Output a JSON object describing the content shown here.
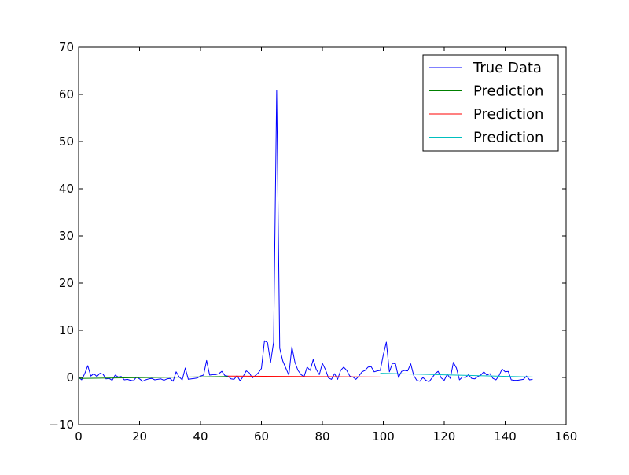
{
  "chart_data": {
    "type": "line",
    "title": "",
    "xlabel": "",
    "ylabel": "",
    "xlim": [
      0,
      160
    ],
    "ylim": [
      -10,
      70
    ],
    "xticks": [
      0,
      20,
      40,
      60,
      80,
      100,
      120,
      140,
      160
    ],
    "yticks": [
      -10,
      0,
      10,
      20,
      30,
      40,
      50,
      60,
      70
    ],
    "grid": false,
    "legend": {
      "placement": "top-right"
    },
    "series": [
      {
        "name": "True Data",
        "color": "#0000ff",
        "x": [
          0,
          1,
          2,
          3,
          4,
          5,
          6,
          7,
          8,
          9,
          10,
          11,
          12,
          13,
          14,
          15,
          16,
          17,
          18,
          19,
          20,
          21,
          22,
          23,
          24,
          25,
          26,
          27,
          28,
          29,
          30,
          31,
          32,
          33,
          34,
          35,
          36,
          37,
          38,
          39,
          40,
          41,
          42,
          43,
          44,
          45,
          46,
          47,
          48,
          49,
          50,
          51,
          52,
          53,
          54,
          55,
          56,
          57,
          58,
          59,
          60,
          61,
          62,
          63,
          64,
          65,
          66,
          67,
          68,
          69,
          70,
          71,
          72,
          73,
          74,
          75,
          76,
          77,
          78,
          79,
          80,
          81,
          82,
          83,
          84,
          85,
          86,
          87,
          88,
          89,
          90,
          91,
          92,
          93,
          94,
          95,
          96,
          97,
          98,
          99,
          100,
          101,
          102,
          103,
          104,
          105,
          106,
          107,
          108,
          109,
          110,
          111,
          112,
          113,
          114,
          115,
          116,
          117,
          118,
          119,
          120,
          121,
          122,
          123,
          124,
          125,
          126,
          127,
          128,
          129,
          130,
          131,
          132,
          133,
          134,
          135,
          136,
          137,
          138,
          139,
          140,
          141,
          142,
          143,
          144,
          145,
          146,
          147,
          148,
          149
        ],
        "y": [
          0,
          -0.5,
          0.8,
          2.5,
          0.3,
          0.8,
          0.2,
          0.9,
          0.7,
          -0.3,
          -0.2,
          -0.6,
          0.5,
          0.1,
          0.2,
          -0.5,
          -0.4,
          -0.6,
          -0.7,
          0.1,
          -0.3,
          -0.8,
          -0.5,
          -0.3,
          -0.2,
          -0.5,
          -0.4,
          -0.3,
          -0.6,
          -0.3,
          -0.2,
          -0.8,
          1.2,
          0.1,
          -0.5,
          2,
          -0.4,
          -0.3,
          -0.2,
          -0.1,
          0.3,
          0.5,
          3.6,
          0.5,
          0.6,
          0.6,
          0.8,
          1.3,
          0.4,
          0.3,
          -0.3,
          -0.4,
          0.4,
          -0.7,
          0.2,
          1.4,
          1,
          -0.1,
          0.4,
          1,
          1.9,
          7.8,
          7.4,
          3.2,
          7.5,
          60.8,
          6.2,
          3.5,
          2,
          0.5,
          6.5,
          3.2,
          1.5,
          0.6,
          0.2,
          2.2,
          1.5,
          3.8,
          1.7,
          0.6,
          3,
          1.7,
          -0.1,
          -0.4,
          0.8,
          -0.4,
          1.5,
          2.2,
          1.5,
          0.3,
          0.1,
          -0.4,
          0.3,
          1.2,
          1.5,
          2.2,
          2.3,
          1.2,
          1.4,
          1.5,
          4.8,
          7.5,
          1.2,
          3,
          2.9,
          0,
          1.3,
          1.5,
          1.4,
          2.9,
          0.4,
          -0.6,
          -0.8,
          0,
          -0.6,
          -0.9,
          -0.1,
          0.8,
          1.3,
          -0.1,
          -0.6,
          0.7,
          -0.2,
          3.2,
          2,
          -0.5,
          0.1,
          0,
          0.6,
          -0.2,
          -0.3,
          0.2,
          0.5,
          1.2,
          0.5,
          0.8,
          -0.2,
          -0.5,
          0.4,
          1.8,
          1.2,
          1.3,
          -0.5,
          -0.6,
          -0.6,
          -0.5,
          -0.4,
          0.3,
          -0.5,
          -0.4
        ]
      },
      {
        "name": "Prediction",
        "color": "#008000",
        "x": [
          0,
          49
        ],
        "y": [
          -0.2,
          0.2
        ]
      },
      {
        "name": "Prediction",
        "color": "#ff0000",
        "x": [
          49,
          99
        ],
        "y": [
          0.3,
          0.1
        ]
      },
      {
        "name": "Prediction",
        "color": "#00bfbf",
        "x": [
          99,
          149
        ],
        "y": [
          0.9,
          0.1
        ]
      }
    ]
  }
}
